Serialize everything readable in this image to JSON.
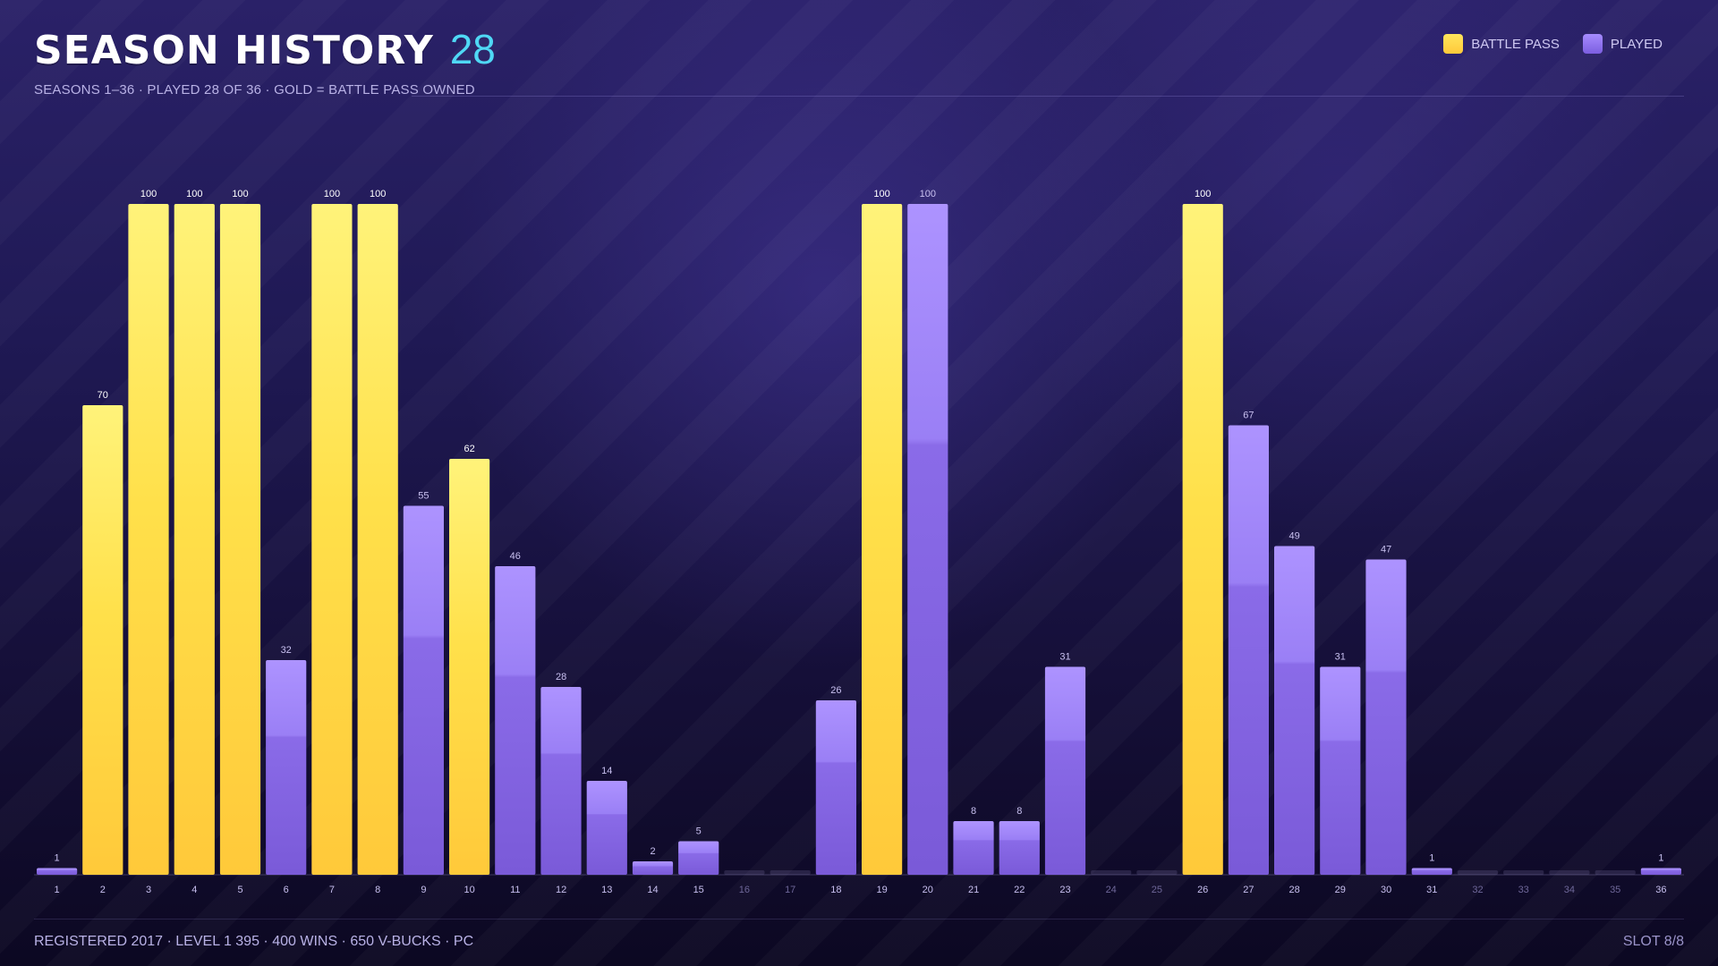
{
  "header": {
    "title": "SEASON HISTORY",
    "count": "28",
    "subtitle": "SEASONS 1–36 · PLAYED 28 OF 36 · GOLD = BATTLE PASS OWNED"
  },
  "legend": {
    "battle_pass_label": "BATTLE PASS",
    "played_label": "PLAYED"
  },
  "colors": {
    "battle_pass": "#ffd23f",
    "played": "#8b6df0",
    "accent": "#4fd8f5"
  },
  "chart_data": {
    "type": "bar",
    "categories": [
      "1",
      "2",
      "3",
      "4",
      "5",
      "6",
      "7",
      "8",
      "9",
      "10",
      "11",
      "12",
      "13",
      "14",
      "15",
      "16",
      "17",
      "18",
      "19",
      "20",
      "21",
      "22",
      "23",
      "24",
      "25",
      "26",
      "27",
      "28",
      "29",
      "30",
      "31",
      "32",
      "33",
      "34",
      "35",
      "36"
    ],
    "values": [
      1,
      70,
      100,
      100,
      100,
      32,
      100,
      100,
      55,
      62,
      46,
      28,
      14,
      2,
      5,
      0,
      0,
      26,
      100,
      100,
      8,
      8,
      31,
      0,
      0,
      100,
      67,
      49,
      31,
      47,
      1,
      0,
      0,
      0,
      0,
      1
    ],
    "battle_pass": [
      false,
      true,
      true,
      true,
      true,
      false,
      true,
      true,
      false,
      true,
      false,
      false,
      false,
      false,
      false,
      false,
      false,
      false,
      true,
      false,
      false,
      false,
      false,
      false,
      false,
      true,
      false,
      false,
      false,
      false,
      false,
      false,
      false,
      false,
      false,
      false
    ],
    "played": [
      true,
      true,
      true,
      true,
      true,
      true,
      true,
      true,
      true,
      true,
      true,
      true,
      true,
      true,
      true,
      false,
      false,
      true,
      true,
      true,
      true,
      true,
      true,
      false,
      false,
      true,
      true,
      true,
      true,
      true,
      true,
      false,
      false,
      false,
      false,
      true
    ],
    "ylim": [
      0,
      100
    ],
    "grid": false,
    "legend_position": "top-right"
  },
  "footer": {
    "left": "REGISTERED 2017 · LEVEL 1 395 · 400 WINS · 650 V-BUCKS · PC",
    "right": "SLOT 8/8"
  }
}
